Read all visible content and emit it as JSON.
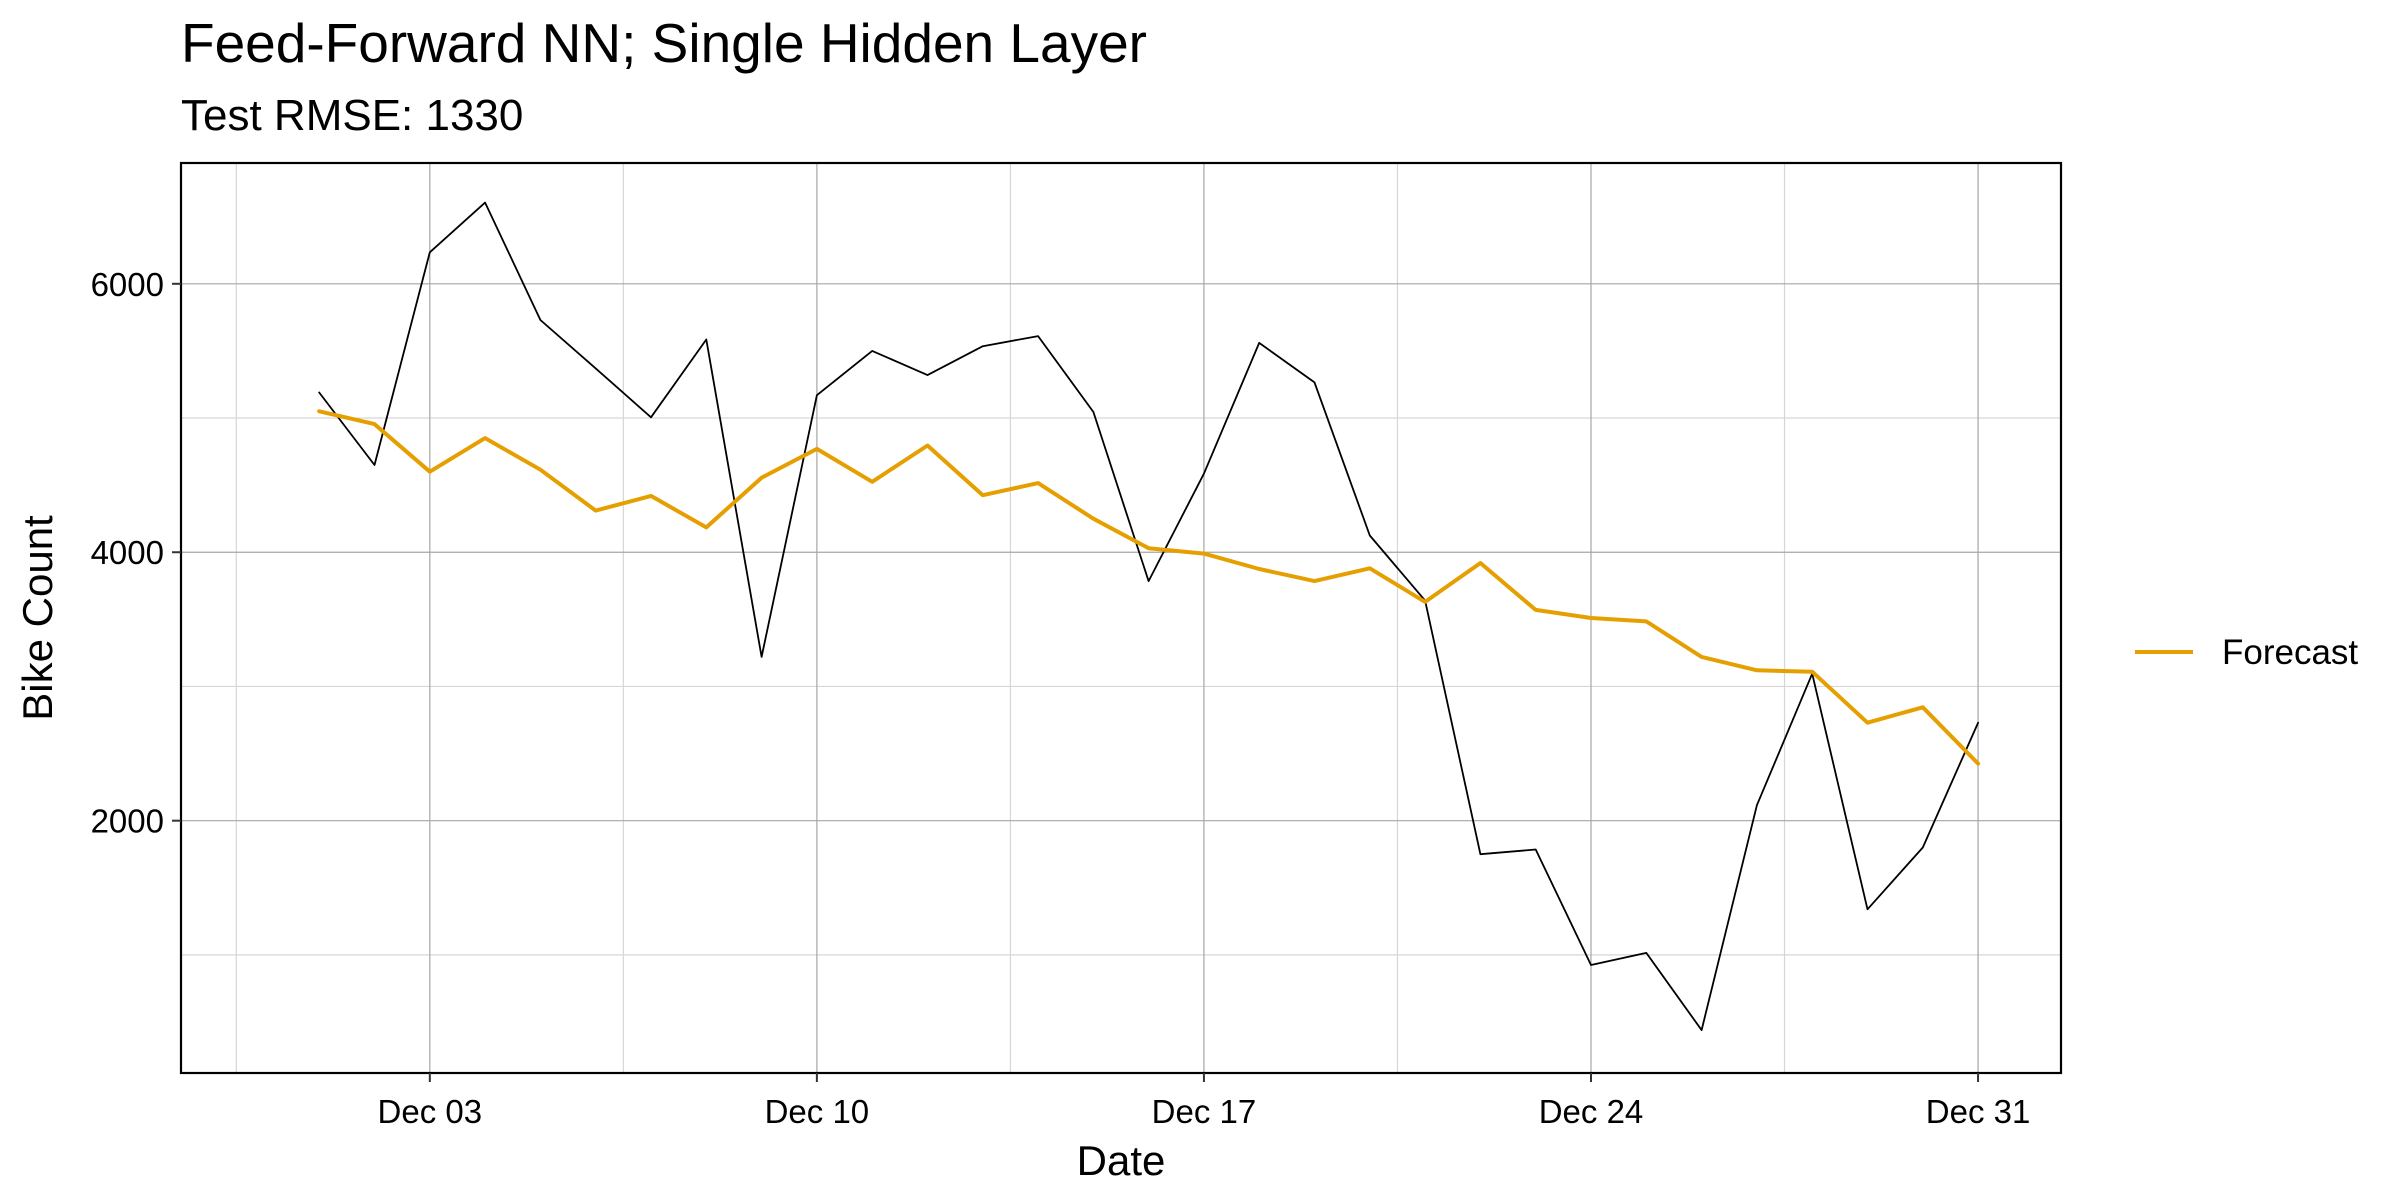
{
  "chart_data": {
    "type": "line",
    "title": "Feed-Forward NN; Single Hidden Layer",
    "subtitle": "Test RMSE: 1330",
    "xlabel": "Date",
    "ylabel": "Bike Count",
    "xlim": [
      "2012-11-28T12:00",
      "2013-01-01T12:00"
    ],
    "ylim": [
      120,
      6900
    ],
    "x_ticks": [
      {
        "date": "2012-12-03",
        "label": "Dec 03"
      },
      {
        "date": "2012-12-10",
        "label": "Dec 10"
      },
      {
        "date": "2012-12-17",
        "label": "Dec 17"
      },
      {
        "date": "2012-12-24",
        "label": "Dec 24"
      },
      {
        "date": "2012-12-31",
        "label": "Dec 31"
      }
    ],
    "y_ticks": [
      2000,
      4000,
      6000
    ],
    "y_minor_ticks": [
      1000,
      3000,
      5000
    ],
    "grid": true,
    "legend_position": "right",
    "x": [
      "2012-12-01",
      "2012-12-02",
      "2012-12-03",
      "2012-12-04",
      "2012-12-05",
      "2012-12-06",
      "2012-12-07",
      "2012-12-08",
      "2012-12-09",
      "2012-12-10",
      "2012-12-11",
      "2012-12-12",
      "2012-12-13",
      "2012-12-14",
      "2012-12-15",
      "2012-12-16",
      "2012-12-17",
      "2012-12-18",
      "2012-12-19",
      "2012-12-20",
      "2012-12-21",
      "2012-12-22",
      "2012-12-23",
      "2012-12-24",
      "2012-12-25",
      "2012-12-26",
      "2012-12-27",
      "2012-12-28",
      "2012-12-29",
      "2012-12-30",
      "2012-12-31"
    ],
    "series": [
      {
        "color": "#000000",
        "values": [
          5190,
          4650,
          6235,
          6605,
          5730,
          5370,
          5005,
          5585,
          3220,
          5170,
          5500,
          5320,
          5535,
          5610,
          5045,
          3785,
          4585,
          5560,
          5265,
          4125,
          3640,
          1750,
          1785,
          925,
          1015,
          440,
          2115,
          3095,
          1340,
          1800,
          2730
        ]
      },
      {
        "name": "Forecast",
        "color": "#E69F00",
        "values": [
          5050,
          4955,
          4600,
          4850,
          4615,
          4310,
          4420,
          4185,
          4555,
          4770,
          4525,
          4795,
          4425,
          4515,
          4250,
          4030,
          3990,
          3875,
          3785,
          3880,
          3630,
          3920,
          3570,
          3510,
          3485,
          3220,
          3120,
          3110,
          2730,
          2845,
          2425
        ]
      }
    ]
  }
}
